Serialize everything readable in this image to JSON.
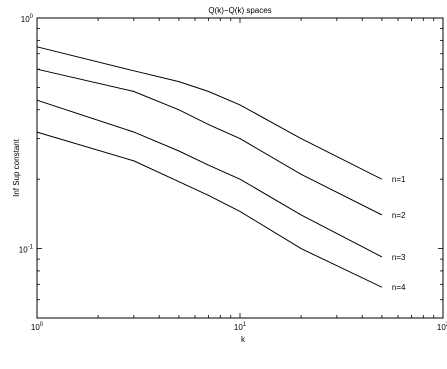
{
  "chart_data": {
    "type": "line",
    "title": "Q(k)−Q(k) spaces",
    "xlabel": "k",
    "ylabel": "Inf Sup constant",
    "xscale": "log",
    "yscale": "log",
    "xlim": [
      1,
      100
    ],
    "ylim": [
      0.05,
      1
    ],
    "x_ticks": [
      {
        "base": "10",
        "exp": "0"
      },
      {
        "base": "10",
        "exp": "1"
      },
      {
        "base": "10",
        "exp": "2"
      }
    ],
    "y_ticks": [
      {
        "base": "10",
        "exp": "0"
      },
      {
        "base": "10",
        "exp": "-1"
      }
    ],
    "grid": false,
    "legend": "none",
    "line_color": "#000000",
    "series": [
      {
        "name": "n=1",
        "x": [
          1,
          3,
          5,
          7,
          10,
          20,
          50
        ],
        "y": [
          0.75,
          0.59,
          0.53,
          0.48,
          0.42,
          0.3,
          0.2
        ]
      },
      {
        "name": "n=2",
        "x": [
          1,
          3,
          5,
          7,
          10,
          20,
          50
        ],
        "y": [
          0.6,
          0.48,
          0.4,
          0.345,
          0.3,
          0.21,
          0.14
        ]
      },
      {
        "name": "n=3",
        "x": [
          1,
          3,
          5,
          7,
          10,
          20,
          50
        ],
        "y": [
          0.44,
          0.32,
          0.265,
          0.23,
          0.2,
          0.14,
          0.092
        ]
      },
      {
        "name": "n=4",
        "x": [
          1,
          3,
          5,
          7,
          10,
          20,
          50
        ],
        "y": [
          0.32,
          0.24,
          0.195,
          0.17,
          0.145,
          0.1,
          0.068
        ]
      }
    ]
  }
}
